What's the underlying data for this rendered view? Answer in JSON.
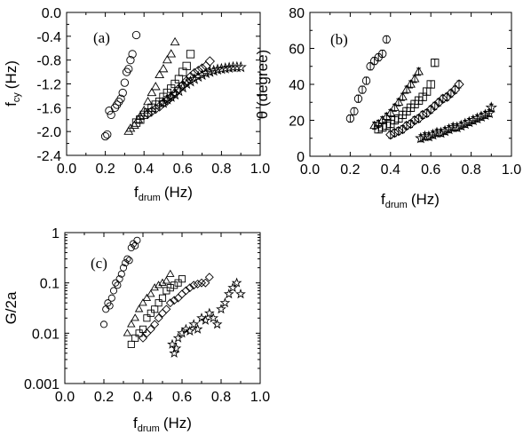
{
  "chart_data": [
    {
      "id": "a",
      "type": "scatter",
      "panel_label": "(a)",
      "xlabel": "f",
      "xlabel_sub": "drum",
      "xlabel_unit": "(Hz)",
      "ylabel": "f",
      "ylabel_sub": "cy",
      "ylabel_unit": "(Hz)",
      "xlim": [
        0.0,
        1.0
      ],
      "ylim": [
        -2.4,
        0.0
      ],
      "yscale": "linear",
      "xticks": [
        "0.0",
        "0.2",
        "0.4",
        "0.6",
        "0.8",
        "1.0"
      ],
      "yticks": [
        "0.0",
        "-0.4",
        "-0.8",
        "-1.2",
        "-1.6",
        "-2.0",
        "-2.4"
      ],
      "series": [
        {
          "marker": "circle",
          "x": [
            0.2,
            0.21,
            0.22,
            0.23,
            0.25,
            0.26,
            0.27,
            0.28,
            0.29,
            0.3,
            0.31,
            0.32,
            0.33,
            0.34,
            0.36
          ],
          "y": [
            -2.08,
            -2.05,
            -1.65,
            -1.72,
            -1.6,
            -1.55,
            -1.5,
            -1.45,
            -1.35,
            -1.18,
            -1.0,
            -0.95,
            -0.8,
            -0.7,
            -0.38
          ]
        },
        {
          "marker": "triangle",
          "x": [
            0.32,
            0.33,
            0.35,
            0.37,
            0.38,
            0.4,
            0.42,
            0.44,
            0.46,
            0.48,
            0.5,
            0.52,
            0.54,
            0.56
          ],
          "y": [
            -2.0,
            -1.95,
            -1.9,
            -1.8,
            -1.75,
            -1.65,
            -1.5,
            -1.35,
            -1.25,
            -1.05,
            -0.95,
            -0.8,
            -0.7,
            -0.5
          ]
        },
        {
          "marker": "square",
          "x": [
            0.36,
            0.38,
            0.4,
            0.42,
            0.44,
            0.46,
            0.48,
            0.5,
            0.52,
            0.54,
            0.56,
            0.58,
            0.6,
            0.62,
            0.64
          ],
          "y": [
            -1.85,
            -1.8,
            -1.72,
            -1.68,
            -1.6,
            -1.55,
            -1.5,
            -1.42,
            -1.35,
            -1.28,
            -1.2,
            -1.12,
            -1.0,
            -0.9,
            -0.7
          ]
        },
        {
          "marker": "diamond",
          "x": [
            0.42,
            0.44,
            0.46,
            0.48,
            0.5,
            0.52,
            0.54,
            0.56,
            0.58,
            0.6,
            0.62,
            0.64,
            0.66,
            0.68,
            0.7,
            0.72,
            0.74
          ],
          "y": [
            -1.7,
            -1.66,
            -1.62,
            -1.58,
            -1.52,
            -1.48,
            -1.42,
            -1.36,
            -1.28,
            -1.22,
            -1.15,
            -1.08,
            -1.02,
            -0.98,
            -0.94,
            -0.9,
            -0.82
          ]
        },
        {
          "marker": "star",
          "x": [
            0.5,
            0.52,
            0.54,
            0.56,
            0.58,
            0.6,
            0.62,
            0.64,
            0.66,
            0.68,
            0.7,
            0.72,
            0.74,
            0.76,
            0.78,
            0.8,
            0.82,
            0.84,
            0.86,
            0.88,
            0.9
          ],
          "y": [
            -1.52,
            -1.46,
            -1.42,
            -1.38,
            -1.32,
            -1.26,
            -1.2,
            -1.16,
            -1.12,
            -1.08,
            -1.05,
            -1.02,
            -1.0,
            -0.98,
            -0.96,
            -0.95,
            -0.94,
            -0.93,
            -0.92,
            -0.92,
            -0.92
          ]
        }
      ]
    },
    {
      "id": "b",
      "type": "scatter",
      "panel_label": "(b)",
      "xlabel": "f",
      "xlabel_sub": "drum",
      "xlabel_unit": "(Hz)",
      "ylabel": "θ (degree)",
      "xlim": [
        0.0,
        1.0
      ],
      "ylim": [
        0,
        80
      ],
      "yscale": "linear",
      "xticks": [
        "0.0",
        "0.2",
        "0.4",
        "0.6",
        "0.8",
        "1.0"
      ],
      "yticks": [
        "0",
        "20",
        "40",
        "60",
        "80"
      ],
      "series": [
        {
          "marker": "circle",
          "error_y": 2,
          "x": [
            0.2,
            0.22,
            0.24,
            0.26,
            0.28,
            0.3,
            0.32,
            0.34,
            0.36,
            0.38
          ],
          "y": [
            21,
            25,
            32,
            37,
            42,
            50,
            53,
            55,
            57,
            65
          ]
        },
        {
          "marker": "triangle",
          "error_y": 2,
          "x": [
            0.32,
            0.34,
            0.36,
            0.38,
            0.4,
            0.42,
            0.44,
            0.46,
            0.48,
            0.5,
            0.52,
            0.54
          ],
          "y": [
            17,
            18,
            20,
            22,
            24,
            27,
            30,
            33,
            37,
            40,
            43,
            47
          ]
        },
        {
          "marker": "square",
          "error_y": 2,
          "x": [
            0.34,
            0.36,
            0.38,
            0.4,
            0.42,
            0.44,
            0.46,
            0.48,
            0.5,
            0.52,
            0.54,
            0.56,
            0.58,
            0.6,
            0.62
          ],
          "y": [
            15,
            16,
            17,
            18,
            20,
            21,
            23,
            25,
            27,
            29,
            31,
            33,
            36,
            40,
            52
          ]
        },
        {
          "marker": "diamond",
          "error_y": 2,
          "x": [
            0.4,
            0.42,
            0.44,
            0.46,
            0.48,
            0.5,
            0.52,
            0.54,
            0.56,
            0.58,
            0.6,
            0.62,
            0.64,
            0.66,
            0.68,
            0.7,
            0.72,
            0.74
          ],
          "y": [
            12,
            13,
            14,
            15,
            17,
            18,
            20,
            21,
            23,
            24,
            26,
            28,
            30,
            32,
            33,
            35,
            37,
            40
          ]
        },
        {
          "marker": "star",
          "error_y": 2,
          "x": [
            0.55,
            0.57,
            0.59,
            0.61,
            0.63,
            0.65,
            0.67,
            0.69,
            0.71,
            0.73,
            0.75,
            0.77,
            0.79,
            0.81,
            0.83,
            0.85,
            0.87,
            0.89,
            0.9
          ],
          "y": [
            10,
            11,
            11,
            12,
            13,
            13,
            14,
            15,
            16,
            16,
            17,
            18,
            19,
            20,
            21,
            22,
            23,
            24,
            27
          ]
        }
      ]
    },
    {
      "id": "c",
      "type": "scatter",
      "panel_label": "(c)",
      "xlabel": "f",
      "xlabel_sub": "drum",
      "xlabel_unit": "(Hz)",
      "ylabel": "G/2a",
      "xlim": [
        0.0,
        1.0
      ],
      "ylim": [
        0.001,
        1
      ],
      "yscale": "log",
      "xticks": [
        "0.0",
        "0.2",
        "0.4",
        "0.6",
        "0.8",
        "1.0"
      ],
      "yticks": [
        "1",
        "0.1",
        "0.01",
        "0.001"
      ],
      "yticks_values": [
        1,
        0.1,
        0.01,
        0.001
      ],
      "series": [
        {
          "marker": "circle",
          "x": [
            0.2,
            0.21,
            0.22,
            0.23,
            0.24,
            0.25,
            0.26,
            0.27,
            0.28,
            0.29,
            0.3,
            0.31,
            0.32,
            0.33,
            0.34,
            0.35,
            0.36,
            0.37
          ],
          "y": [
            0.015,
            0.03,
            0.04,
            0.035,
            0.05,
            0.07,
            0.1,
            0.09,
            0.12,
            0.15,
            0.2,
            0.25,
            0.3,
            0.28,
            0.5,
            0.6,
            0.55,
            0.7
          ]
        },
        {
          "marker": "triangle",
          "x": [
            0.32,
            0.34,
            0.36,
            0.38,
            0.4,
            0.42,
            0.44,
            0.46,
            0.48,
            0.5,
            0.52,
            0.54
          ],
          "y": [
            0.01,
            0.015,
            0.02,
            0.03,
            0.04,
            0.05,
            0.06,
            0.08,
            0.09,
            0.1,
            0.11,
            0.15
          ]
        },
        {
          "marker": "square",
          "x": [
            0.34,
            0.36,
            0.38,
            0.4,
            0.42,
            0.44,
            0.46,
            0.48,
            0.5,
            0.52,
            0.54,
            0.56,
            0.58,
            0.6
          ],
          "y": [
            0.006,
            0.008,
            0.01,
            0.012,
            0.02,
            0.025,
            0.03,
            0.04,
            0.05,
            0.07,
            0.08,
            0.09,
            0.1,
            0.12
          ]
        },
        {
          "marker": "diamond",
          "x": [
            0.4,
            0.42,
            0.44,
            0.46,
            0.48,
            0.5,
            0.52,
            0.54,
            0.56,
            0.58,
            0.6,
            0.62,
            0.64,
            0.66,
            0.68,
            0.7,
            0.72,
            0.74
          ],
          "y": [
            0.008,
            0.01,
            0.012,
            0.015,
            0.02,
            0.025,
            0.03,
            0.04,
            0.045,
            0.05,
            0.06,
            0.07,
            0.08,
            0.09,
            0.095,
            0.1,
            0.1,
            0.13
          ]
        },
        {
          "marker": "star",
          "x": [
            0.55,
            0.56,
            0.57,
            0.58,
            0.6,
            0.62,
            0.64,
            0.66,
            0.68,
            0.7,
            0.72,
            0.74,
            0.76,
            0.78,
            0.8,
            0.82,
            0.84,
            0.86,
            0.88,
            0.9
          ],
          "y": [
            0.006,
            0.004,
            0.005,
            0.008,
            0.01,
            0.012,
            0.011,
            0.015,
            0.012,
            0.02,
            0.018,
            0.025,
            0.02,
            0.015,
            0.03,
            0.04,
            0.06,
            0.08,
            0.1,
            0.06
          ]
        }
      ]
    }
  ]
}
